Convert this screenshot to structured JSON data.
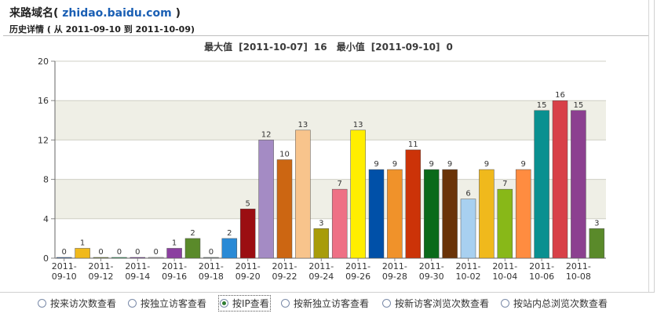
{
  "header": {
    "title": "来路域名",
    "domain": "zhidao.baidu.com",
    "detail_prefix": "历史详情",
    "range_from_label": "从",
    "range_from": "2011-09-10",
    "range_to_label": "到",
    "range_to": "2011-10-09"
  },
  "summary": {
    "max_label": "最大值",
    "max_date": "[2011-10-07]",
    "max_value": "16",
    "min_label": "最小值",
    "min_date": "[2011-09-10]",
    "min_value": "0"
  },
  "chart_data": {
    "type": "bar",
    "title": "",
    "xlabel": "",
    "ylabel": "",
    "ylim": [
      0,
      20
    ],
    "yticks": [
      "0",
      "4",
      "8",
      "12",
      "16",
      "20"
    ],
    "grid": true,
    "x_tick_labels": [
      [
        "2011-",
        "09-10"
      ],
      [
        "2011-",
        "09-12"
      ],
      [
        "2011-",
        "09-14"
      ],
      [
        "2011-",
        "09-16"
      ],
      [
        "2011-",
        "09-18"
      ],
      [
        "2011-",
        "09-20"
      ],
      [
        "2011-",
        "09-22"
      ],
      [
        "2011-",
        "09-24"
      ],
      [
        "2011-",
        "09-26"
      ],
      [
        "2011-",
        "09-28"
      ],
      [
        "2011-",
        "09-30"
      ],
      [
        "2011-",
        "10-02"
      ],
      [
        "2011-",
        "10-04"
      ],
      [
        "2011-",
        "10-06"
      ],
      [
        "2011-",
        "10-08"
      ]
    ],
    "categories": [
      "2011-09-10",
      "2011-09-11",
      "2011-09-12",
      "2011-09-13",
      "2011-09-14",
      "2011-09-15",
      "2011-09-16",
      "2011-09-17",
      "2011-09-18",
      "2011-09-19",
      "2011-09-20",
      "2011-09-21",
      "2011-09-22",
      "2011-09-23",
      "2011-09-24",
      "2011-09-25",
      "2011-09-26",
      "2011-09-27",
      "2011-09-28",
      "2011-09-29",
      "2011-09-30",
      "2011-10-01",
      "2011-10-02",
      "2011-10-03",
      "2011-10-04",
      "2011-10-05",
      "2011-10-06",
      "2011-10-07",
      "2011-10-08",
      "2011-10-09"
    ],
    "values": [
      0,
      1,
      0,
      0,
      0,
      0,
      1,
      2,
      0,
      2,
      5,
      12,
      10,
      13,
      3,
      7,
      13,
      9,
      9,
      11,
      9,
      9,
      6,
      9,
      7,
      9,
      15,
      16,
      15,
      3
    ],
    "colors": [
      "#3c6fb4",
      "#f0b91c",
      "#7a8a38",
      "#3aa86a",
      "#7a3fa0",
      "#b8b8b8",
      "#8b3fa0",
      "#5a8a2a",
      "#7a8a88",
      "#2a8ad6",
      "#9b0e12",
      "#a48bc4",
      "#cc6612",
      "#f8c48c",
      "#a89c0a",
      "#ee7085",
      "#ffee00",
      "#0050a8",
      "#f0922a",
      "#cc3308",
      "#0a6a1a",
      "#6a3308",
      "#a8d0f0",
      "#f0b91c",
      "#88b818",
      "#ff8c40",
      "#0a9090",
      "#d84048",
      "#8c4090",
      "#5a8a2a"
    ]
  },
  "view_options": [
    {
      "label": "按来访次数查看",
      "checked": false
    },
    {
      "label": "按独立访客查看",
      "checked": false
    },
    {
      "label": "按IP查看",
      "checked": true
    },
    {
      "label": "按新独立访客查看",
      "checked": false
    },
    {
      "label": "按新访客浏览次数查看",
      "checked": false
    },
    {
      "label": "按站内总浏览次数查看",
      "checked": false
    }
  ]
}
